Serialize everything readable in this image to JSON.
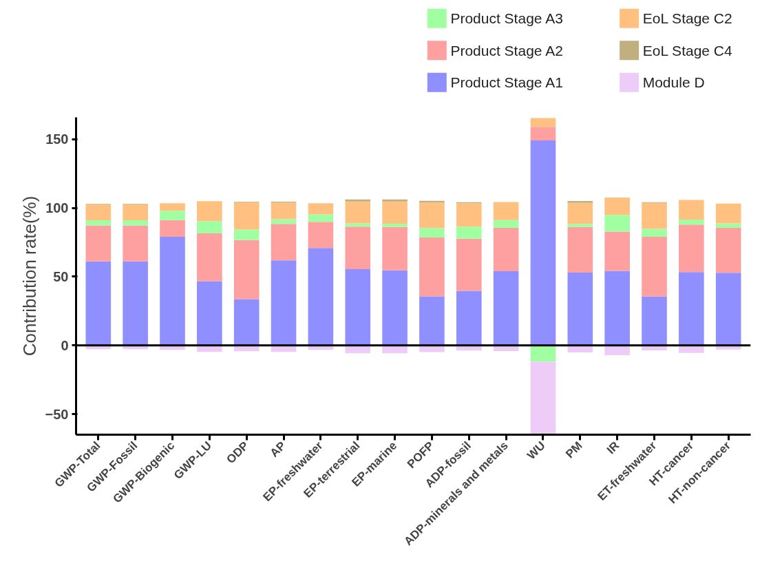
{
  "chart_data": {
    "type": "bar",
    "stacked": true,
    "ylabel": "Contribution rate(%)",
    "categories": [
      "GWP-Total",
      "GWP-Fossil",
      "GWP-Biogenic",
      "GWP-LU",
      "ODP",
      "AP",
      "EP-freshwater",
      "EP-terrestrial",
      "EP-marine",
      "POFP",
      "ADP-fossil",
      "ADP-minerals and metals",
      "WU",
      "PM",
      "IR",
      "ET-freshwater",
      "HT-cancer",
      "HT-non-cancer"
    ],
    "series": [
      {
        "name": "Product Stage A1",
        "color": "#8f8fff",
        "values": [
          61.1,
          61.1,
          79.0,
          46.8,
          33.7,
          61.9,
          70.9,
          55.5,
          54.6,
          35.7,
          39.7,
          54.0,
          149.2,
          53.0,
          54.2,
          35.6,
          53.4,
          52.9
        ]
      },
      {
        "name": "Product Stage A2",
        "color": "#ffa0a0",
        "values": [
          26.2,
          26.2,
          12.2,
          34.8,
          43.0,
          26.5,
          19.0,
          31.0,
          31.6,
          42.9,
          38.0,
          31.6,
          9.9,
          33.2,
          28.6,
          43.4,
          34.6,
          32.7
        ]
      },
      {
        "name": "Product Stage A3",
        "color": "#a0ffa0",
        "values": [
          3.8,
          3.8,
          6.8,
          8.9,
          7.6,
          3.4,
          5.5,
          2.3,
          2.4,
          6.8,
          8.8,
          5.6,
          -11.9,
          2.2,
          12.2,
          5.8,
          3.6,
          3.2
        ]
      },
      {
        "name": "EoL Stage C2",
        "color": "#ffc080",
        "values": [
          11.5,
          11.5,
          5.5,
          14.5,
          19.9,
          12.2,
          8.1,
          16.0,
          16.2,
          18.6,
          17.0,
          13.2,
          6.4,
          15.4,
          12.6,
          19.0,
          14.3,
          14.5
        ]
      },
      {
        "name": "EoL Stage C4",
        "color": "#c0b080",
        "values": [
          0.4,
          0.4,
          0,
          0,
          0.4,
          0.6,
          0,
          1.5,
          1.5,
          1.3,
          0.8,
          0,
          0,
          1.3,
          0,
          0.4,
          0,
          0
        ]
      },
      {
        "name": "Module D",
        "color": "#eeccf8",
        "values": [
          -2.8,
          -2.8,
          -3.2,
          -4.7,
          -4.3,
          -4.7,
          -3.2,
          -5.8,
          -5.8,
          -4.9,
          -3.8,
          -4.1,
          -52.8,
          -5.1,
          -7.1,
          -3.6,
          -5.5,
          -3.0
        ]
      }
    ],
    "ylim": [
      -65,
      166
    ],
    "yticks": [
      -50,
      0,
      50,
      100,
      150
    ],
    "ref_lines": [
      {
        "axis": "y",
        "value": 0,
        "color": "#000000"
      }
    ],
    "grid": false,
    "legend": "top right"
  }
}
